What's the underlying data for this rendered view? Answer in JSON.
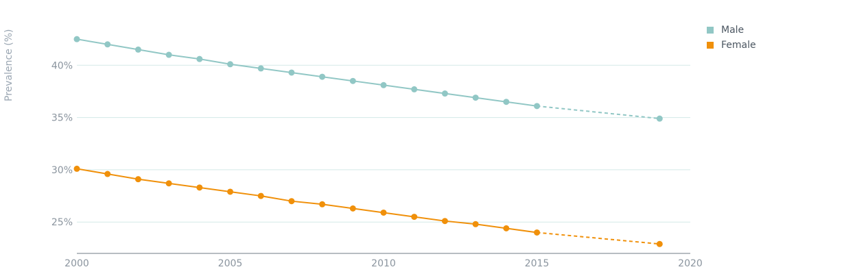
{
  "chart_data": {
    "type": "line",
    "ylabel": "Prevalence (%)",
    "xlabel": "",
    "xlim": [
      2000,
      2020
    ],
    "ylim": [
      22,
      45
    ],
    "x_ticks": [
      "2000",
      "2005",
      "2010",
      "2015",
      "2020"
    ],
    "y_ticks": [
      "25%",
      "30%",
      "35%",
      "40%"
    ],
    "grid": "horizontal",
    "legend_position": "top-right",
    "series": [
      {
        "name": "Male",
        "color": "#91c7c5",
        "x": [
          2000,
          2001,
          2002,
          2003,
          2004,
          2005,
          2006,
          2007,
          2008,
          2009,
          2010,
          2011,
          2012,
          2013,
          2014,
          2015,
          2019
        ],
        "values": [
          42.5,
          42.0,
          41.5,
          41.0,
          40.6,
          40.1,
          39.7,
          39.3,
          38.9,
          38.5,
          38.1,
          37.7,
          37.3,
          36.9,
          36.5,
          36.1,
          34.9
        ],
        "projected_from": 2015
      },
      {
        "name": "Female",
        "color": "#f0900a",
        "x": [
          2000,
          2001,
          2002,
          2003,
          2004,
          2005,
          2006,
          2007,
          2008,
          2009,
          2010,
          2011,
          2012,
          2013,
          2014,
          2015,
          2019
        ],
        "values": [
          30.1,
          29.6,
          29.1,
          28.7,
          28.3,
          27.9,
          27.5,
          27.0,
          26.7,
          26.3,
          25.9,
          25.5,
          25.1,
          24.8,
          24.4,
          24.0,
          22.9
        ],
        "projected_from": 2015
      }
    ]
  }
}
